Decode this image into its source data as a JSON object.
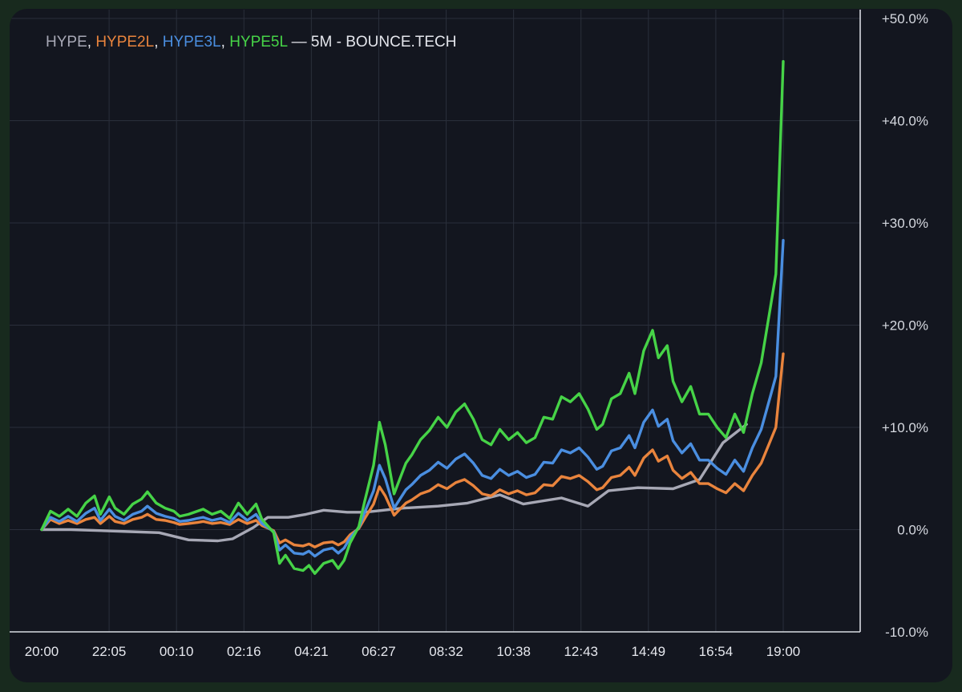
{
  "legend": {
    "series_labels": [
      "HYPE",
      "HYPE2L",
      "HYPE3L",
      "HYPE5L"
    ],
    "separator": ", ",
    "dash": "—",
    "suffix": "5M - BOUNCE.TECH",
    "suffix_color": "#e4e6ec"
  },
  "colors": {
    "background": "#13161f",
    "grid": "#2a2f3b",
    "axis_line": "#d8dbe2"
  },
  "chart_data": {
    "type": "line",
    "title": "HYPE, HYPE2L, HYPE3L, HYPE5L — 5M - BOUNCE.TECH",
    "xlabel": "",
    "ylabel": "",
    "x_ticks": [
      "20:00",
      "22:05",
      "00:10",
      "02:16",
      "04:21",
      "06:27",
      "08:32",
      "10:38",
      "12:43",
      "14:49",
      "16:54",
      "19:00"
    ],
    "y_ticks": [
      "+50.0%",
      "+40.0%",
      "+30.0%",
      "+20.0%",
      "+10.0%",
      "0.0%",
      "-10.0%"
    ],
    "y_tick_values": [
      50,
      40,
      30,
      20,
      10,
      0,
      -10
    ],
    "ylim": [
      -10,
      50
    ],
    "x_unit": "hours since 20:00 (23h span)",
    "xlim": [
      0,
      25.25
    ],
    "grid": true,
    "legend_position": "top-left",
    "series": [
      {
        "name": "HYPE",
        "color": "#a7a8b5",
        "points": [
          [
            0,
            0
          ],
          [
            1,
            0
          ],
          [
            3,
            -0.2
          ],
          [
            4,
            -0.3
          ],
          [
            5,
            -1.0
          ],
          [
            6,
            -1.1
          ],
          [
            6.5,
            -0.9
          ],
          [
            7.2,
            0.2
          ],
          [
            7.7,
            1.2
          ],
          [
            8.4,
            1.2
          ],
          [
            9,
            1.5
          ],
          [
            9.6,
            1.9
          ],
          [
            10.4,
            1.7
          ],
          [
            11,
            1.7
          ],
          [
            12.3,
            2.1
          ],
          [
            13.5,
            2.3
          ],
          [
            14.5,
            2.6
          ],
          [
            15.6,
            3.4
          ],
          [
            16.4,
            2.5
          ],
          [
            17.7,
            3.1
          ],
          [
            18.6,
            2.3
          ],
          [
            19.3,
            3.8
          ],
          [
            20.3,
            4.1
          ],
          [
            21.5,
            4.0
          ],
          [
            22.4,
            4.9
          ],
          [
            23.2,
            8.5
          ],
          [
            24,
            10.3
          ]
        ]
      },
      {
        "name": "HYPE2L",
        "color": "#e9843d",
        "points": [
          [
            0,
            0
          ],
          [
            0.3,
            1.0
          ],
          [
            0.6,
            0.6
          ],
          [
            0.9,
            0.9
          ],
          [
            1.2,
            0.6
          ],
          [
            1.5,
            1.0
          ],
          [
            1.8,
            1.2
          ],
          [
            2.0,
            0.6
          ],
          [
            2.3,
            1.3
          ],
          [
            2.5,
            0.8
          ],
          [
            2.8,
            0.6
          ],
          [
            3.1,
            1.0
          ],
          [
            3.4,
            1.2
          ],
          [
            3.6,
            1.5
          ],
          [
            3.9,
            1.0
          ],
          [
            4.2,
            0.9
          ],
          [
            4.5,
            0.7
          ],
          [
            4.7,
            0.5
          ],
          [
            5.0,
            0.6
          ],
          [
            5.3,
            0.7
          ],
          [
            5.5,
            0.8
          ],
          [
            5.8,
            0.6
          ],
          [
            6.1,
            0.7
          ],
          [
            6.4,
            0.5
          ],
          [
            6.7,
            1.0
          ],
          [
            7.0,
            0.6
          ],
          [
            7.3,
            0.9
          ],
          [
            7.5,
            0.4
          ],
          [
            7.9,
            -0.1
          ],
          [
            8.1,
            -1.3
          ],
          [
            8.3,
            -1.0
          ],
          [
            8.6,
            -1.5
          ],
          [
            8.9,
            -1.6
          ],
          [
            9.1,
            -1.4
          ],
          [
            9.3,
            -1.7
          ],
          [
            9.6,
            -1.3
          ],
          [
            9.9,
            -1.2
          ],
          [
            10.1,
            -1.5
          ],
          [
            10.3,
            -1.2
          ],
          [
            10.5,
            -0.5
          ],
          [
            10.8,
            0.1
          ],
          [
            11.0,
            1.1
          ],
          [
            11.3,
            2.5
          ],
          [
            11.5,
            4.2
          ],
          [
            11.7,
            3.3
          ],
          [
            12.0,
            1.4
          ],
          [
            12.2,
            2.0
          ],
          [
            12.4,
            2.6
          ],
          [
            12.6,
            2.9
          ],
          [
            12.9,
            3.5
          ],
          [
            13.2,
            3.8
          ],
          [
            13.5,
            4.4
          ],
          [
            13.8,
            4.0
          ],
          [
            14.1,
            4.6
          ],
          [
            14.4,
            4.9
          ],
          [
            14.7,
            4.3
          ],
          [
            15.0,
            3.5
          ],
          [
            15.3,
            3.3
          ],
          [
            15.6,
            3.9
          ],
          [
            15.9,
            3.5
          ],
          [
            16.2,
            3.8
          ],
          [
            16.5,
            3.4
          ],
          [
            16.8,
            3.6
          ],
          [
            17.1,
            4.4
          ],
          [
            17.4,
            4.3
          ],
          [
            17.7,
            5.2
          ],
          [
            18.0,
            5.0
          ],
          [
            18.3,
            5.3
          ],
          [
            18.6,
            4.7
          ],
          [
            18.9,
            3.9
          ],
          [
            19.1,
            4.1
          ],
          [
            19.4,
            5.1
          ],
          [
            19.7,
            5.3
          ],
          [
            20.0,
            6.1
          ],
          [
            20.2,
            5.3
          ],
          [
            20.5,
            7.0
          ],
          [
            20.8,
            7.8
          ],
          [
            21.0,
            6.7
          ],
          [
            21.3,
            7.2
          ],
          [
            21.5,
            5.8
          ],
          [
            21.8,
            5.0
          ],
          [
            22.1,
            5.6
          ],
          [
            22.4,
            4.5
          ],
          [
            22.7,
            4.5
          ],
          [
            23.0,
            4.0
          ],
          [
            23.3,
            3.6
          ],
          [
            23.6,
            4.5
          ],
          [
            23.9,
            3.8
          ],
          [
            24.2,
            5.3
          ],
          [
            24.5,
            6.5
          ],
          [
            24.8,
            8.6
          ],
          [
            25.0,
            10.0
          ],
          [
            25.25,
            17.2
          ]
        ]
      },
      {
        "name": "HYPE3L",
        "color": "#4a8ee0",
        "points": [
          [
            0,
            0
          ],
          [
            0.3,
            1.2
          ],
          [
            0.6,
            0.8
          ],
          [
            0.9,
            1.3
          ],
          [
            1.2,
            0.8
          ],
          [
            1.5,
            1.6
          ],
          [
            1.8,
            2.1
          ],
          [
            2.0,
            0.9
          ],
          [
            2.3,
            2.0
          ],
          [
            2.5,
            1.3
          ],
          [
            2.8,
            0.9
          ],
          [
            3.1,
            1.5
          ],
          [
            3.4,
            1.8
          ],
          [
            3.6,
            2.3
          ],
          [
            3.9,
            1.6
          ],
          [
            4.2,
            1.3
          ],
          [
            4.5,
            1.1
          ],
          [
            4.7,
            0.8
          ],
          [
            5.0,
            0.9
          ],
          [
            5.3,
            1.1
          ],
          [
            5.5,
            1.2
          ],
          [
            5.8,
            0.9
          ],
          [
            6.1,
            1.1
          ],
          [
            6.4,
            0.7
          ],
          [
            6.7,
            1.6
          ],
          [
            7.0,
            0.9
          ],
          [
            7.3,
            1.5
          ],
          [
            7.5,
            0.6
          ],
          [
            7.9,
            -0.2
          ],
          [
            8.1,
            -2.0
          ],
          [
            8.3,
            -1.5
          ],
          [
            8.6,
            -2.3
          ],
          [
            8.9,
            -2.4
          ],
          [
            9.1,
            -2.1
          ],
          [
            9.3,
            -2.6
          ],
          [
            9.6,
            -2.0
          ],
          [
            9.9,
            -1.8
          ],
          [
            10.1,
            -2.3
          ],
          [
            10.3,
            -1.8
          ],
          [
            10.5,
            -0.8
          ],
          [
            10.8,
            0.2
          ],
          [
            11.0,
            1.7
          ],
          [
            11.3,
            3.8
          ],
          [
            11.5,
            6.3
          ],
          [
            11.7,
            5.0
          ],
          [
            12.0,
            2.1
          ],
          [
            12.2,
            3.0
          ],
          [
            12.4,
            3.9
          ],
          [
            12.6,
            4.4
          ],
          [
            12.9,
            5.3
          ],
          [
            13.2,
            5.8
          ],
          [
            13.5,
            6.6
          ],
          [
            13.8,
            6.0
          ],
          [
            14.1,
            6.9
          ],
          [
            14.4,
            7.4
          ],
          [
            14.7,
            6.5
          ],
          [
            15.0,
            5.3
          ],
          [
            15.3,
            5.0
          ],
          [
            15.6,
            5.9
          ],
          [
            15.9,
            5.3
          ],
          [
            16.2,
            5.7
          ],
          [
            16.5,
            5.1
          ],
          [
            16.8,
            5.4
          ],
          [
            17.1,
            6.6
          ],
          [
            17.4,
            6.5
          ],
          [
            17.7,
            7.8
          ],
          [
            18.0,
            7.5
          ],
          [
            18.3,
            8.0
          ],
          [
            18.6,
            7.1
          ],
          [
            18.9,
            5.9
          ],
          [
            19.1,
            6.2
          ],
          [
            19.4,
            7.7
          ],
          [
            19.7,
            8.0
          ],
          [
            20.0,
            9.2
          ],
          [
            20.2,
            8.0
          ],
          [
            20.5,
            10.5
          ],
          [
            20.8,
            11.7
          ],
          [
            21.0,
            10.1
          ],
          [
            21.3,
            10.8
          ],
          [
            21.5,
            8.7
          ],
          [
            21.8,
            7.5
          ],
          [
            22.1,
            8.4
          ],
          [
            22.4,
            6.8
          ],
          [
            22.7,
            6.8
          ],
          [
            23.0,
            6.0
          ],
          [
            23.3,
            5.4
          ],
          [
            23.6,
            6.8
          ],
          [
            23.9,
            5.7
          ],
          [
            24.2,
            8.0
          ],
          [
            24.5,
            9.8
          ],
          [
            24.8,
            12.9
          ],
          [
            25.0,
            15.0
          ],
          [
            25.25,
            28.3
          ]
        ]
      },
      {
        "name": "HYPE5L",
        "color": "#46d347",
        "points": [
          [
            0,
            0
          ],
          [
            0.3,
            1.8
          ],
          [
            0.6,
            1.3
          ],
          [
            0.9,
            2.0
          ],
          [
            1.2,
            1.3
          ],
          [
            1.5,
            2.6
          ],
          [
            1.8,
            3.3
          ],
          [
            2.0,
            1.5
          ],
          [
            2.3,
            3.2
          ],
          [
            2.5,
            2.1
          ],
          [
            2.8,
            1.5
          ],
          [
            3.1,
            2.5
          ],
          [
            3.4,
            3.0
          ],
          [
            3.6,
            3.7
          ],
          [
            3.9,
            2.6
          ],
          [
            4.2,
            2.1
          ],
          [
            4.5,
            1.8
          ],
          [
            4.7,
            1.3
          ],
          [
            5.0,
            1.5
          ],
          [
            5.3,
            1.8
          ],
          [
            5.5,
            2.0
          ],
          [
            5.8,
            1.5
          ],
          [
            6.1,
            1.8
          ],
          [
            6.4,
            1.1
          ],
          [
            6.7,
            2.6
          ],
          [
            7.0,
            1.5
          ],
          [
            7.3,
            2.5
          ],
          [
            7.5,
            1.0
          ],
          [
            7.9,
            -0.3
          ],
          [
            8.1,
            -3.3
          ],
          [
            8.3,
            -2.5
          ],
          [
            8.6,
            -3.8
          ],
          [
            8.9,
            -4.0
          ],
          [
            9.1,
            -3.5
          ],
          [
            9.3,
            -4.3
          ],
          [
            9.6,
            -3.3
          ],
          [
            9.9,
            -3.0
          ],
          [
            10.1,
            -3.8
          ],
          [
            10.3,
            -3.0
          ],
          [
            10.5,
            -1.3
          ],
          [
            10.8,
            0.3
          ],
          [
            11.0,
            2.8
          ],
          [
            11.3,
            6.3
          ],
          [
            11.5,
            10.5
          ],
          [
            11.7,
            8.3
          ],
          [
            12.0,
            3.5
          ],
          [
            12.2,
            5.0
          ],
          [
            12.4,
            6.5
          ],
          [
            12.6,
            7.3
          ],
          [
            12.9,
            8.8
          ],
          [
            13.2,
            9.7
          ],
          [
            13.5,
            11.0
          ],
          [
            13.8,
            10.0
          ],
          [
            14.1,
            11.5
          ],
          [
            14.4,
            12.3
          ],
          [
            14.7,
            10.8
          ],
          [
            15.0,
            8.8
          ],
          [
            15.3,
            8.3
          ],
          [
            15.6,
            9.8
          ],
          [
            15.9,
            8.8
          ],
          [
            16.2,
            9.5
          ],
          [
            16.5,
            8.5
          ],
          [
            16.8,
            9.0
          ],
          [
            17.1,
            11.0
          ],
          [
            17.4,
            10.8
          ],
          [
            17.7,
            13.0
          ],
          [
            18.0,
            12.5
          ],
          [
            18.3,
            13.3
          ],
          [
            18.6,
            11.8
          ],
          [
            18.9,
            9.8
          ],
          [
            19.1,
            10.3
          ],
          [
            19.4,
            12.8
          ],
          [
            19.7,
            13.3
          ],
          [
            20.0,
            15.3
          ],
          [
            20.2,
            13.3
          ],
          [
            20.5,
            17.5
          ],
          [
            20.8,
            19.5
          ],
          [
            21.0,
            16.8
          ],
          [
            21.3,
            18.0
          ],
          [
            21.5,
            14.5
          ],
          [
            21.8,
            12.5
          ],
          [
            22.1,
            14.0
          ],
          [
            22.4,
            11.3
          ],
          [
            22.7,
            11.3
          ],
          [
            23.0,
            10.0
          ],
          [
            23.3,
            9.0
          ],
          [
            23.6,
            11.3
          ],
          [
            23.9,
            9.5
          ],
          [
            24.2,
            13.3
          ],
          [
            24.5,
            16.3
          ],
          [
            24.8,
            21.5
          ],
          [
            25.0,
            25.0
          ],
          [
            25.25,
            45.8
          ]
        ]
      }
    ]
  }
}
